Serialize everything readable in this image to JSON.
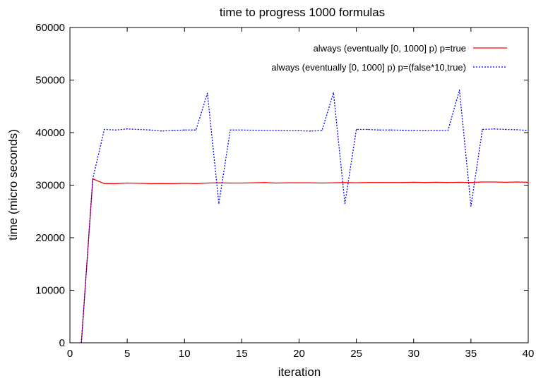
{
  "chart_data": {
    "type": "line",
    "title": "time to progress 1000 formulas",
    "xlabel": "iteration",
    "ylabel": "time (micro seconds)",
    "xlim": [
      0,
      40
    ],
    "ylim": [
      0,
      60000
    ],
    "xticks": [
      0,
      5,
      10,
      15,
      20,
      25,
      30,
      35,
      40
    ],
    "yticks": [
      0,
      10000,
      20000,
      30000,
      40000,
      50000,
      60000
    ],
    "grid": false,
    "legend_position": "top-right",
    "series": [
      {
        "name": "always (eventually [0, 1000] p) p=true",
        "color": "#ff0000",
        "dash": "solid",
        "x": [
          1,
          2,
          3,
          4,
          5,
          6,
          7,
          8,
          9,
          10,
          11,
          12,
          13,
          14,
          15,
          16,
          17,
          18,
          19,
          20,
          21,
          22,
          23,
          24,
          25,
          26,
          27,
          28,
          29,
          30,
          31,
          32,
          33,
          34,
          35,
          36,
          37,
          38,
          39,
          40
        ],
        "y": [
          0,
          31200,
          30300,
          30300,
          30400,
          30350,
          30300,
          30300,
          30300,
          30350,
          30300,
          30400,
          30450,
          30400,
          30400,
          30450,
          30500,
          30400,
          30450,
          30450,
          30450,
          30400,
          30450,
          30500,
          30450,
          30500,
          30500,
          30500,
          30500,
          30550,
          30500,
          30550,
          30500,
          30550,
          30500,
          30600,
          30600,
          30550,
          30600,
          30550
        ]
      },
      {
        "name": "always (eventually [0, 1000] p) p=(false*10,true)",
        "color": "#0000ff",
        "dash": "dotted",
        "x": [
          1,
          2,
          3,
          4,
          5,
          6,
          7,
          8,
          9,
          10,
          11,
          12,
          13,
          14,
          15,
          16,
          17,
          18,
          19,
          20,
          21,
          22,
          23,
          24,
          25,
          26,
          27,
          28,
          29,
          30,
          31,
          32,
          33,
          34,
          35,
          36,
          37,
          38,
          39,
          40
        ],
        "y": [
          0,
          31200,
          40600,
          40500,
          40700,
          40600,
          40500,
          40300,
          40400,
          40500,
          40500,
          47500,
          26500,
          40500,
          40500,
          40450,
          40400,
          40400,
          40350,
          40350,
          40300,
          40400,
          47600,
          26500,
          40600,
          40600,
          40500,
          40500,
          40450,
          40400,
          40350,
          40400,
          40400,
          48100,
          26000,
          40600,
          40700,
          40600,
          40550,
          40400
        ]
      }
    ]
  }
}
